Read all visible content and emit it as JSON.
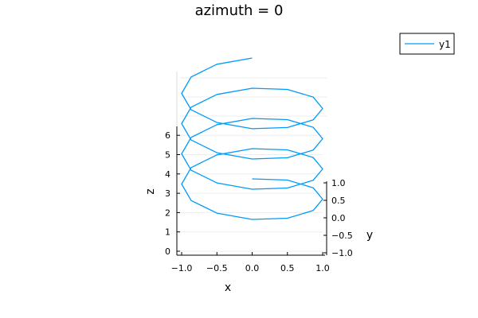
{
  "chart_data": {
    "type": "line",
    "projection": "3d",
    "title": "azimuth = 0",
    "xlabel": "x",
    "ylabel": "y",
    "zlabel": "z",
    "xlim": [
      -1,
      1
    ],
    "ylim": [
      -1,
      1
    ],
    "zlim": [
      0,
      6.4
    ],
    "xticks": [
      "−1.0",
      "−0.5",
      "0.0",
      "0.5",
      "1.0"
    ],
    "xtick_values": [
      -1,
      -0.5,
      0,
      0.5,
      1
    ],
    "yticks": [
      "−1.0",
      "−0.5",
      "0.0",
      "0.5",
      "1.0"
    ],
    "ytick_values": [
      -1,
      -0.5,
      0,
      0.5,
      1
    ],
    "zticks": [
      "0",
      "1",
      "2",
      "3",
      "4",
      "5",
      "6"
    ],
    "ztick_values": [
      0,
      1,
      2,
      3,
      4,
      5,
      6
    ],
    "grid": true,
    "legend": {
      "position": "top-right",
      "entries": [
        "y1"
      ]
    },
    "series": [
      {
        "name": "y1",
        "color": "#009af9",
        "x": [
          0,
          0.5,
          0.866,
          1,
          0.866,
          0.5,
          0,
          -0.5,
          -0.866,
          -1,
          -0.866,
          -0.5,
          0,
          0.5,
          0.866,
          1,
          0.866,
          0.5,
          0,
          -0.5,
          -0.866,
          -1,
          -0.866,
          -0.5,
          0,
          0.5,
          0.866,
          1,
          0.866,
          0.5,
          0,
          -0.5,
          -0.866,
          -1,
          -0.866,
          -0.5,
          0,
          0.5,
          0.866,
          1,
          0.866,
          0.5,
          0,
          -0.5,
          -0.866,
          -1,
          -0.866,
          -0.5,
          0
        ],
        "y": [
          1,
          0.866,
          0.5,
          0,
          -0.5,
          -0.866,
          -1,
          -0.866,
          -0.5,
          0,
          0.5,
          0.866,
          1,
          0.866,
          0.5,
          0,
          -0.5,
          -0.866,
          -1,
          -0.866,
          -0.5,
          0,
          0.5,
          0.866,
          1,
          0.866,
          0.5,
          0,
          -0.5,
          -0.866,
          -1,
          -0.866,
          -0.5,
          0,
          0.5,
          0.866,
          1,
          0.866,
          0.5,
          0,
          -0.5,
          -0.866,
          -1,
          -0.866,
          -0.5,
          0,
          0.5,
          0.866,
          1
        ],
        "z": [
          0,
          0.131,
          0.262,
          0.393,
          0.524,
          0.654,
          0.785,
          0.916,
          1.047,
          1.178,
          1.309,
          1.44,
          1.571,
          1.702,
          1.833,
          1.963,
          2.094,
          2.225,
          2.356,
          2.487,
          2.618,
          2.749,
          2.88,
          3.011,
          3.142,
          3.272,
          3.403,
          3.534,
          3.665,
          3.796,
          3.927,
          4.058,
          4.189,
          4.32,
          4.451,
          4.581,
          4.712,
          4.843,
          4.974,
          5.105,
          5.236,
          5.367,
          5.498,
          5.629,
          5.76,
          5.89,
          6.021,
          6.152,
          6.283
        ]
      }
    ]
  }
}
